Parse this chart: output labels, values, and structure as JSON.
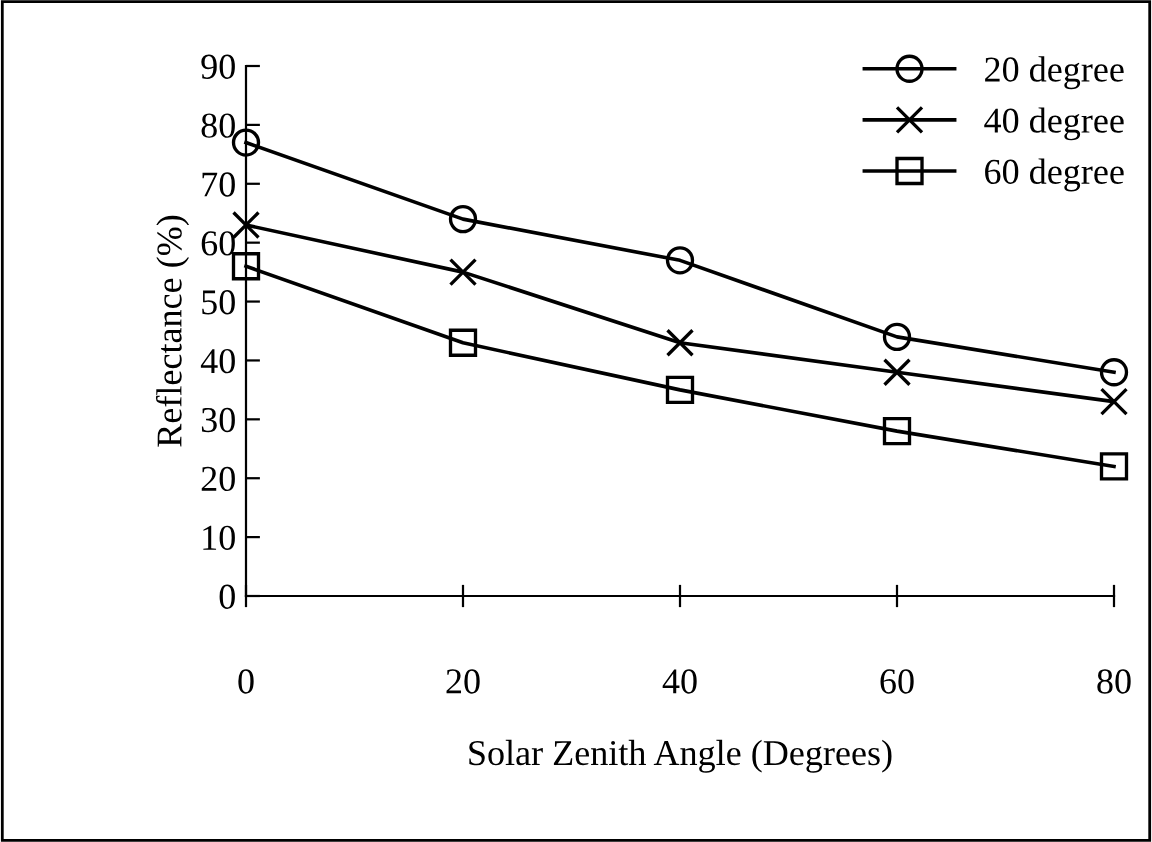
{
  "chart_data": {
    "type": "line",
    "xlabel": "Solar Zenith Angle (Degrees)",
    "ylabel": "Reflectance (%)",
    "x": [
      0,
      20,
      40,
      60,
      80
    ],
    "series": [
      {
        "name": "20 degree",
        "color": "#000000",
        "marker": "circle",
        "values": [
          77,
          64,
          57,
          44,
          38
        ]
      },
      {
        "name": "40 degree",
        "color": "#000000",
        "marker": "cross",
        "values": [
          63,
          55,
          43,
          38,
          33
        ]
      },
      {
        "name": "60 degree",
        "color": "#000000",
        "marker": "square",
        "values": [
          56,
          43,
          35,
          28,
          22
        ]
      }
    ],
    "xlim": [
      0,
      80
    ],
    "xticks": [
      0,
      20,
      40,
      60,
      80
    ],
    "ylim": [
      0,
      90
    ],
    "yticks": [
      0,
      10,
      20,
      30,
      40,
      50,
      60,
      70,
      80,
      90
    ],
    "grid": false,
    "legend": "top right",
    "line_style": "solid"
  }
}
